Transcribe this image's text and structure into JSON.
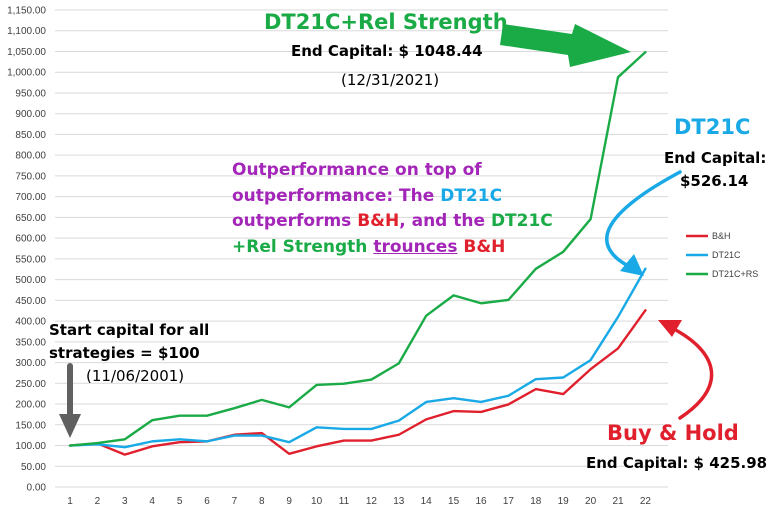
{
  "chart_data": {
    "type": "line",
    "x": [
      1,
      2,
      3,
      4,
      5,
      6,
      7,
      8,
      9,
      10,
      11,
      12,
      13,
      14,
      15,
      16,
      17,
      18,
      19,
      20,
      21,
      22
    ],
    "series": [
      {
        "name": "B&H",
        "color": "#e0202c",
        "values": [
          100,
          105,
          78,
          98,
          108,
          110,
          126,
          130,
          80,
          98,
          112,
          112,
          126,
          163,
          183,
          181,
          199,
          236,
          224,
          284,
          334,
          425.98
        ]
      },
      {
        "name": "DT21C",
        "color": "#19a9e6",
        "values": [
          100,
          103,
          96,
          110,
          115,
          110,
          124,
          124,
          108,
          144,
          140,
          140,
          160,
          205,
          214,
          205,
          220,
          260,
          264,
          306,
          410,
          526.14
        ]
      },
      {
        "name": "DT21C+RS",
        "color": "#1aab47",
        "values": [
          100,
          106,
          115,
          161,
          172,
          172,
          190,
          210,
          192,
          246,
          249,
          259,
          298,
          413,
          462,
          443,
          451,
          526,
          567,
          646,
          988,
          1048.44
        ]
      }
    ],
    "ylim": [
      0,
      1150
    ],
    "yticks": [
      "0.00",
      "50.00",
      "100.00",
      "150.00",
      "200.00",
      "250.00",
      "300.00",
      "350.00",
      "400.00",
      "450.00",
      "500.00",
      "550.00",
      "600.00",
      "650.00",
      "700.00",
      "750.00",
      "800.00",
      "850.00",
      "900.00",
      "950.00",
      "1,000.00",
      "1,050.00",
      "1,100.00",
      "1,150.00"
    ],
    "grid": true,
    "legend": "right"
  },
  "annotations": {
    "rs_title": "DT21C+Rel Strength",
    "rs_end": "End Capital: $ 1048.44",
    "rs_date": "(12/31/2021)",
    "dt_title": "DT21C",
    "dt_end_line1": "End Capital:",
    "dt_end_line2": "$526.14",
    "outperf": {
      "l1": "Outperformance on top of",
      "l2a": "outperformance: The ",
      "l2b": "DT21C",
      "l3a": "outperforms ",
      "l3b": "B&H",
      "l3c": ",  and the ",
      "l3d": "DT21C",
      "l4a": "+Rel Strength ",
      "l4b": "trounces",
      "l4c": " B&H"
    },
    "start_l1": "Start capital for all",
    "start_l2": "strategies = $100",
    "start_date": "(11/06/2001)",
    "bh_title": "Buy & Hold",
    "bh_end": "End Capital: $ 425.98"
  },
  "colors": {
    "green": "#1aab47",
    "blue": "#19a9e6",
    "red": "#e0202c",
    "purple": "#a326b8",
    "grid": "#d9d9d9",
    "arrow_dark": "#606060"
  }
}
